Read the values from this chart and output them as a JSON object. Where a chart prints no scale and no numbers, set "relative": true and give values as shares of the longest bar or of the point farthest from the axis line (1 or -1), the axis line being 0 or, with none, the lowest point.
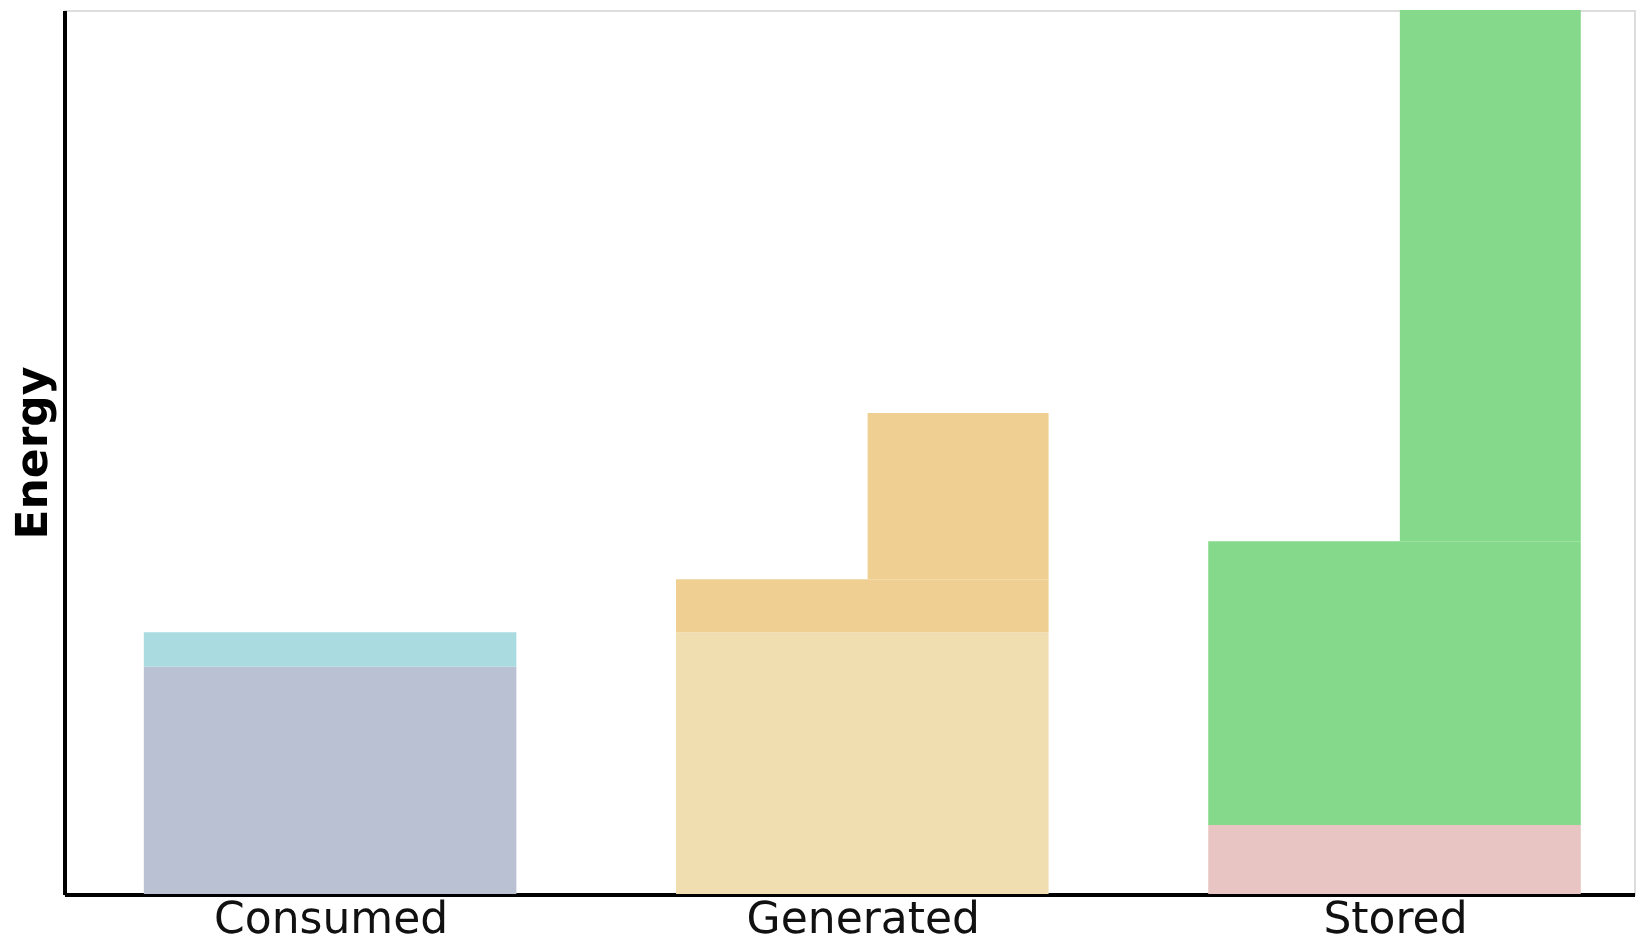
{
  "chart_data": {
    "type": "bar",
    "stacked": true,
    "relative": true,
    "ylabel": "Energy",
    "categories": [
      "Consumed",
      "Generated",
      "Stored"
    ],
    "grid": false,
    "series": [
      {
        "colors": [
          "#b9c1d2",
          "#f1deb0",
          "#e8c4c2"
        ],
        "values": [
          0.257,
          0.296,
          0.078
        ]
      },
      {
        "colors": [
          "#a9dbe0",
          "#efd092",
          "#84d98a"
        ],
        "values": [
          0.039,
          0.06,
          0.321
        ]
      },
      {
        "colors": [
          null,
          "#efd092",
          "#84d98a"
        ],
        "values": [
          null,
          0.188,
          0.438
        ]
      },
      {
        "colors": [
          null,
          null,
          "#84d98a"
        ],
        "values": [
          null,
          null,
          0.163
        ]
      }
    ]
  }
}
